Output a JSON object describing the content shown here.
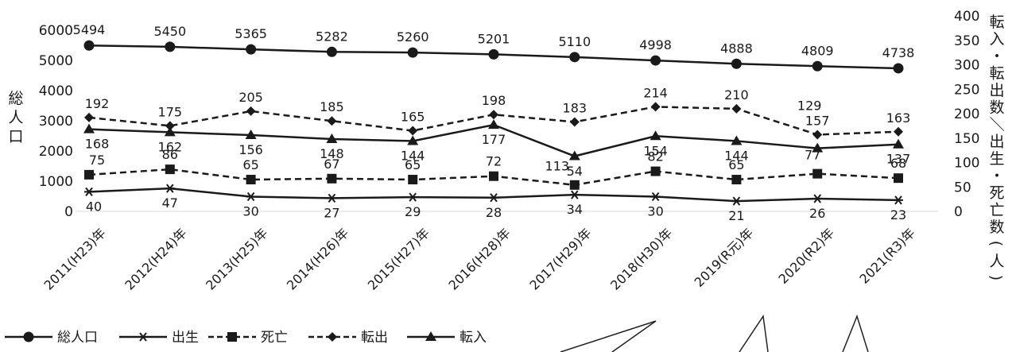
{
  "chart_data": {
    "type": "line",
    "categories": [
      "2011(H23)年",
      "2012(H24)年",
      "2013(H25)年",
      "2014(H26)年",
      "2015(H27)年",
      "2016(H28)年",
      "2017(H29)年",
      "2018(H30)年",
      "2019(R元)年",
      "2020(R2)年",
      "2021(R3)年"
    ],
    "y_left": {
      "label": "総人口",
      "ylim": [
        0,
        6000
      ],
      "ticks": [
        0,
        1000,
        2000,
        3000,
        4000,
        5000,
        6000
      ]
    },
    "y_right": {
      "label": "転入・転出数／出生・死亡数(人)",
      "ylim": [
        0,
        400
      ],
      "ticks": [
        0,
        50,
        100,
        150,
        200,
        250,
        300,
        350,
        400
      ]
    },
    "series": [
      {
        "name": "総人口",
        "axis": "left",
        "marker": "circle",
        "dash": false,
        "values": [
          5494,
          5450,
          5365,
          5282,
          5260,
          5201,
          5110,
          4998,
          4888,
          4809,
          4738
        ]
      },
      {
        "name": "出生",
        "axis": "right",
        "marker": "asterisk",
        "dash": false,
        "values": [
          40,
          47,
          30,
          27,
          29,
          28,
          34,
          30,
          21,
          26,
          23
        ]
      },
      {
        "name": "死亡",
        "axis": "right",
        "marker": "square",
        "dash": true,
        "values": [
          75,
          86,
          65,
          67,
          65,
          72,
          54,
          82,
          65,
          77,
          68
        ]
      },
      {
        "name": "転出",
        "axis": "right",
        "marker": "diamond",
        "dash": true,
        "values": [
          192,
          175,
          205,
          185,
          165,
          198,
          183,
          214,
          210,
          157,
          163
        ]
      },
      {
        "name": "転入",
        "axis": "right",
        "marker": "triangle",
        "dash": false,
        "values": [
          168,
          162,
          156,
          148,
          144,
          177,
          113,
          154,
          144,
          129,
          137
        ]
      }
    ],
    "legend_position": "bottom-left",
    "grid": false
  }
}
